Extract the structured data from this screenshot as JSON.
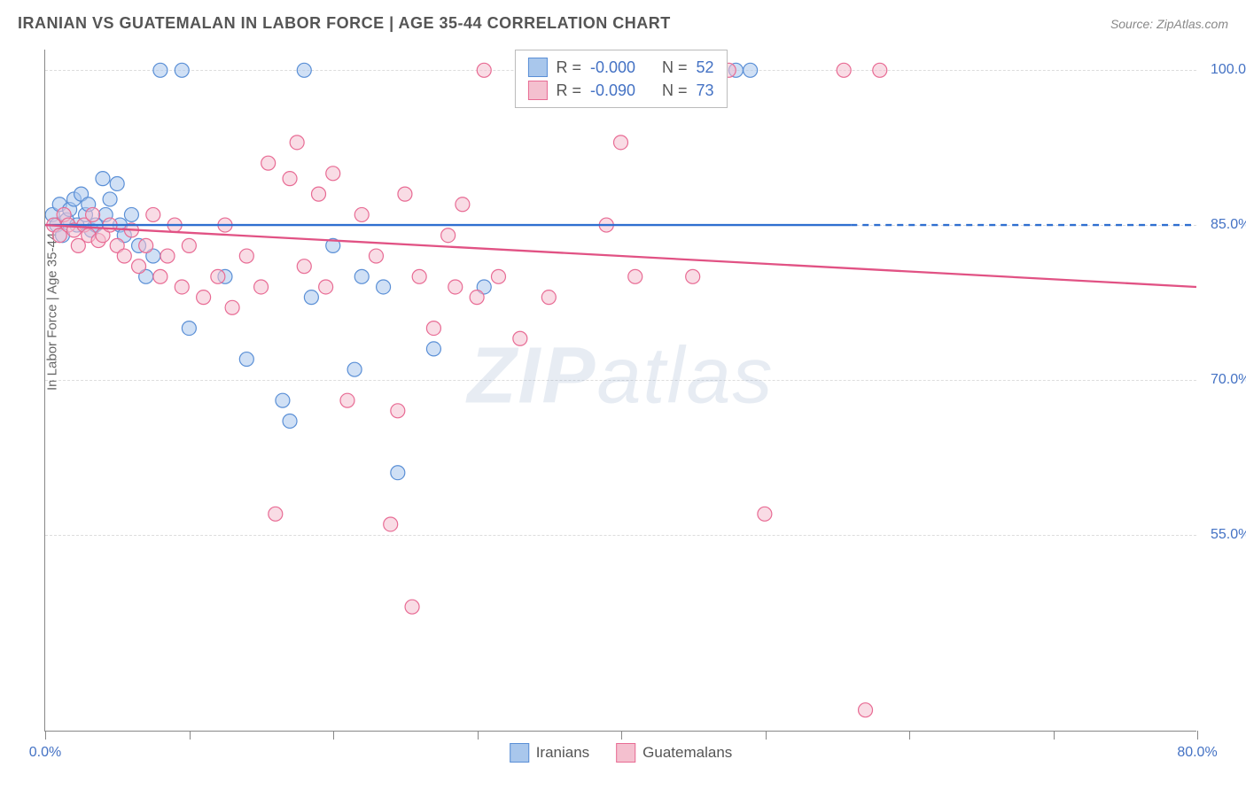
{
  "title": "IRANIAN VS GUATEMALAN IN LABOR FORCE | AGE 35-44 CORRELATION CHART",
  "source": "Source: ZipAtlas.com",
  "watermark_a": "ZIP",
  "watermark_b": "atlas",
  "chart": {
    "type": "scatter",
    "y_label": "In Labor Force | Age 35-44",
    "xlim": [
      0,
      80
    ],
    "ylim": [
      36,
      102
    ],
    "x_ticks": [
      0,
      10,
      20,
      30,
      40,
      50,
      60,
      70,
      80
    ],
    "x_tick_labels_shown": {
      "0": "0.0%",
      "80": "80.0%"
    },
    "y_grid": [
      55,
      70,
      85,
      100
    ],
    "y_grid_labels": [
      "55.0%",
      "70.0%",
      "85.0%",
      "100.0%"
    ],
    "background_color": "#ffffff",
    "grid_color": "#dddddd",
    "axis_color": "#888888",
    "label_color": "#4472c4",
    "title_color": "#555555",
    "marker_radius": 8,
    "marker_opacity": 0.55,
    "marker_stroke_width": 1.2,
    "line_width": 2.3
  },
  "series": [
    {
      "name": "Iranians",
      "fill": "#a9c7ec",
      "stroke": "#5a8fd6",
      "line_color": "#2f6fd0",
      "R": "-0.000",
      "N": "52",
      "trend": {
        "x1": 0,
        "y1": 85.0,
        "x2": 56,
        "y2": 85.0,
        "dash_after": true,
        "x2_end": 80
      },
      "points": [
        [
          0.5,
          86
        ],
        [
          0.8,
          85
        ],
        [
          1.0,
          87
        ],
        [
          1.2,
          84
        ],
        [
          1.5,
          85.5
        ],
        [
          1.7,
          86.5
        ],
        [
          2.0,
          87.5
        ],
        [
          2.2,
          85
        ],
        [
          2.5,
          88
        ],
        [
          2.8,
          86
        ],
        [
          3.0,
          87
        ],
        [
          3.2,
          84.5
        ],
        [
          3.5,
          85
        ],
        [
          4.0,
          89.5
        ],
        [
          4.2,
          86
        ],
        [
          4.5,
          87.5
        ],
        [
          5.0,
          89
        ],
        [
          5.2,
          85
        ],
        [
          5.5,
          84
        ],
        [
          6.0,
          86
        ],
        [
          6.5,
          83
        ],
        [
          7.0,
          80
        ],
        [
          7.5,
          82
        ],
        [
          8.0,
          100
        ],
        [
          9.5,
          100
        ],
        [
          10.0,
          75
        ],
        [
          12.5,
          80
        ],
        [
          14.0,
          72
        ],
        [
          18.0,
          100
        ],
        [
          16.5,
          68
        ],
        [
          17.0,
          66
        ],
        [
          18.5,
          78
        ],
        [
          20.0,
          83
        ],
        [
          21.5,
          71
        ],
        [
          22.0,
          80
        ],
        [
          23.5,
          79
        ],
        [
          24.5,
          61
        ],
        [
          27.0,
          73
        ],
        [
          30.5,
          79
        ],
        [
          36.0,
          100
        ],
        [
          46.5,
          100
        ],
        [
          48.0,
          100
        ],
        [
          49.0,
          100
        ]
      ]
    },
    {
      "name": "Guatemalans",
      "fill": "#f4c0cf",
      "stroke": "#e86b94",
      "line_color": "#e15284",
      "R": "-0.090",
      "N": "73",
      "trend": {
        "x1": 0,
        "y1": 85.0,
        "x2": 80,
        "y2": 79.0
      },
      "points": [
        [
          0.6,
          85
        ],
        [
          1.0,
          84
        ],
        [
          1.3,
          86
        ],
        [
          1.6,
          85
        ],
        [
          2.0,
          84.5
        ],
        [
          2.3,
          83
        ],
        [
          2.7,
          85
        ],
        [
          3.0,
          84
        ],
        [
          3.3,
          86
        ],
        [
          3.7,
          83.5
        ],
        [
          4.0,
          84
        ],
        [
          4.5,
          85
        ],
        [
          5.0,
          83
        ],
        [
          5.5,
          82
        ],
        [
          6.0,
          84.5
        ],
        [
          6.5,
          81
        ],
        [
          7.0,
          83
        ],
        [
          7.5,
          86
        ],
        [
          8.0,
          80
        ],
        [
          8.5,
          82
        ],
        [
          9.0,
          85
        ],
        [
          9.5,
          79
        ],
        [
          10.0,
          83
        ],
        [
          11.0,
          78
        ],
        [
          12.0,
          80
        ],
        [
          12.5,
          85
        ],
        [
          13.0,
          77
        ],
        [
          14.0,
          82
        ],
        [
          15.0,
          79
        ],
        [
          15.5,
          91
        ],
        [
          16.0,
          57
        ],
        [
          17.0,
          89.5
        ],
        [
          17.5,
          93
        ],
        [
          18.0,
          81
        ],
        [
          19.0,
          88
        ],
        [
          19.5,
          79
        ],
        [
          20.0,
          90
        ],
        [
          21.0,
          68
        ],
        [
          22.0,
          86
        ],
        [
          23.0,
          82
        ],
        [
          24.0,
          56
        ],
        [
          24.5,
          67
        ],
        [
          25.0,
          88
        ],
        [
          25.5,
          48
        ],
        [
          26.0,
          80
        ],
        [
          27.0,
          75
        ],
        [
          28.0,
          84
        ],
        [
          28.5,
          79
        ],
        [
          29.0,
          87
        ],
        [
          30.0,
          78
        ],
        [
          30.5,
          100
        ],
        [
          31.5,
          80
        ],
        [
          33.0,
          74
        ],
        [
          35.0,
          78
        ],
        [
          37.0,
          100
        ],
        [
          39.0,
          85
        ],
        [
          40.0,
          93
        ],
        [
          41.0,
          80
        ],
        [
          45.0,
          80
        ],
        [
          47.5,
          100
        ],
        [
          50.0,
          57
        ],
        [
          55.5,
          100
        ],
        [
          57.0,
          38
        ],
        [
          58.0,
          100
        ]
      ]
    }
  ],
  "stats_box": {
    "rows": [
      {
        "swatch_fill": "#a9c7ec",
        "swatch_stroke": "#5a8fd6",
        "r_label": "R =",
        "r_val": "-0.000",
        "n_label": "N =",
        "n_val": "52"
      },
      {
        "swatch_fill": "#f4c0cf",
        "swatch_stroke": "#e86b94",
        "r_label": "R =",
        "r_val": "-0.090",
        "n_label": "N =",
        "n_val": "73"
      }
    ]
  },
  "bottom_legend": [
    {
      "swatch_fill": "#a9c7ec",
      "swatch_stroke": "#5a8fd6",
      "label": "Iranians"
    },
    {
      "swatch_fill": "#f4c0cf",
      "swatch_stroke": "#e86b94",
      "label": "Guatemalans"
    }
  ]
}
